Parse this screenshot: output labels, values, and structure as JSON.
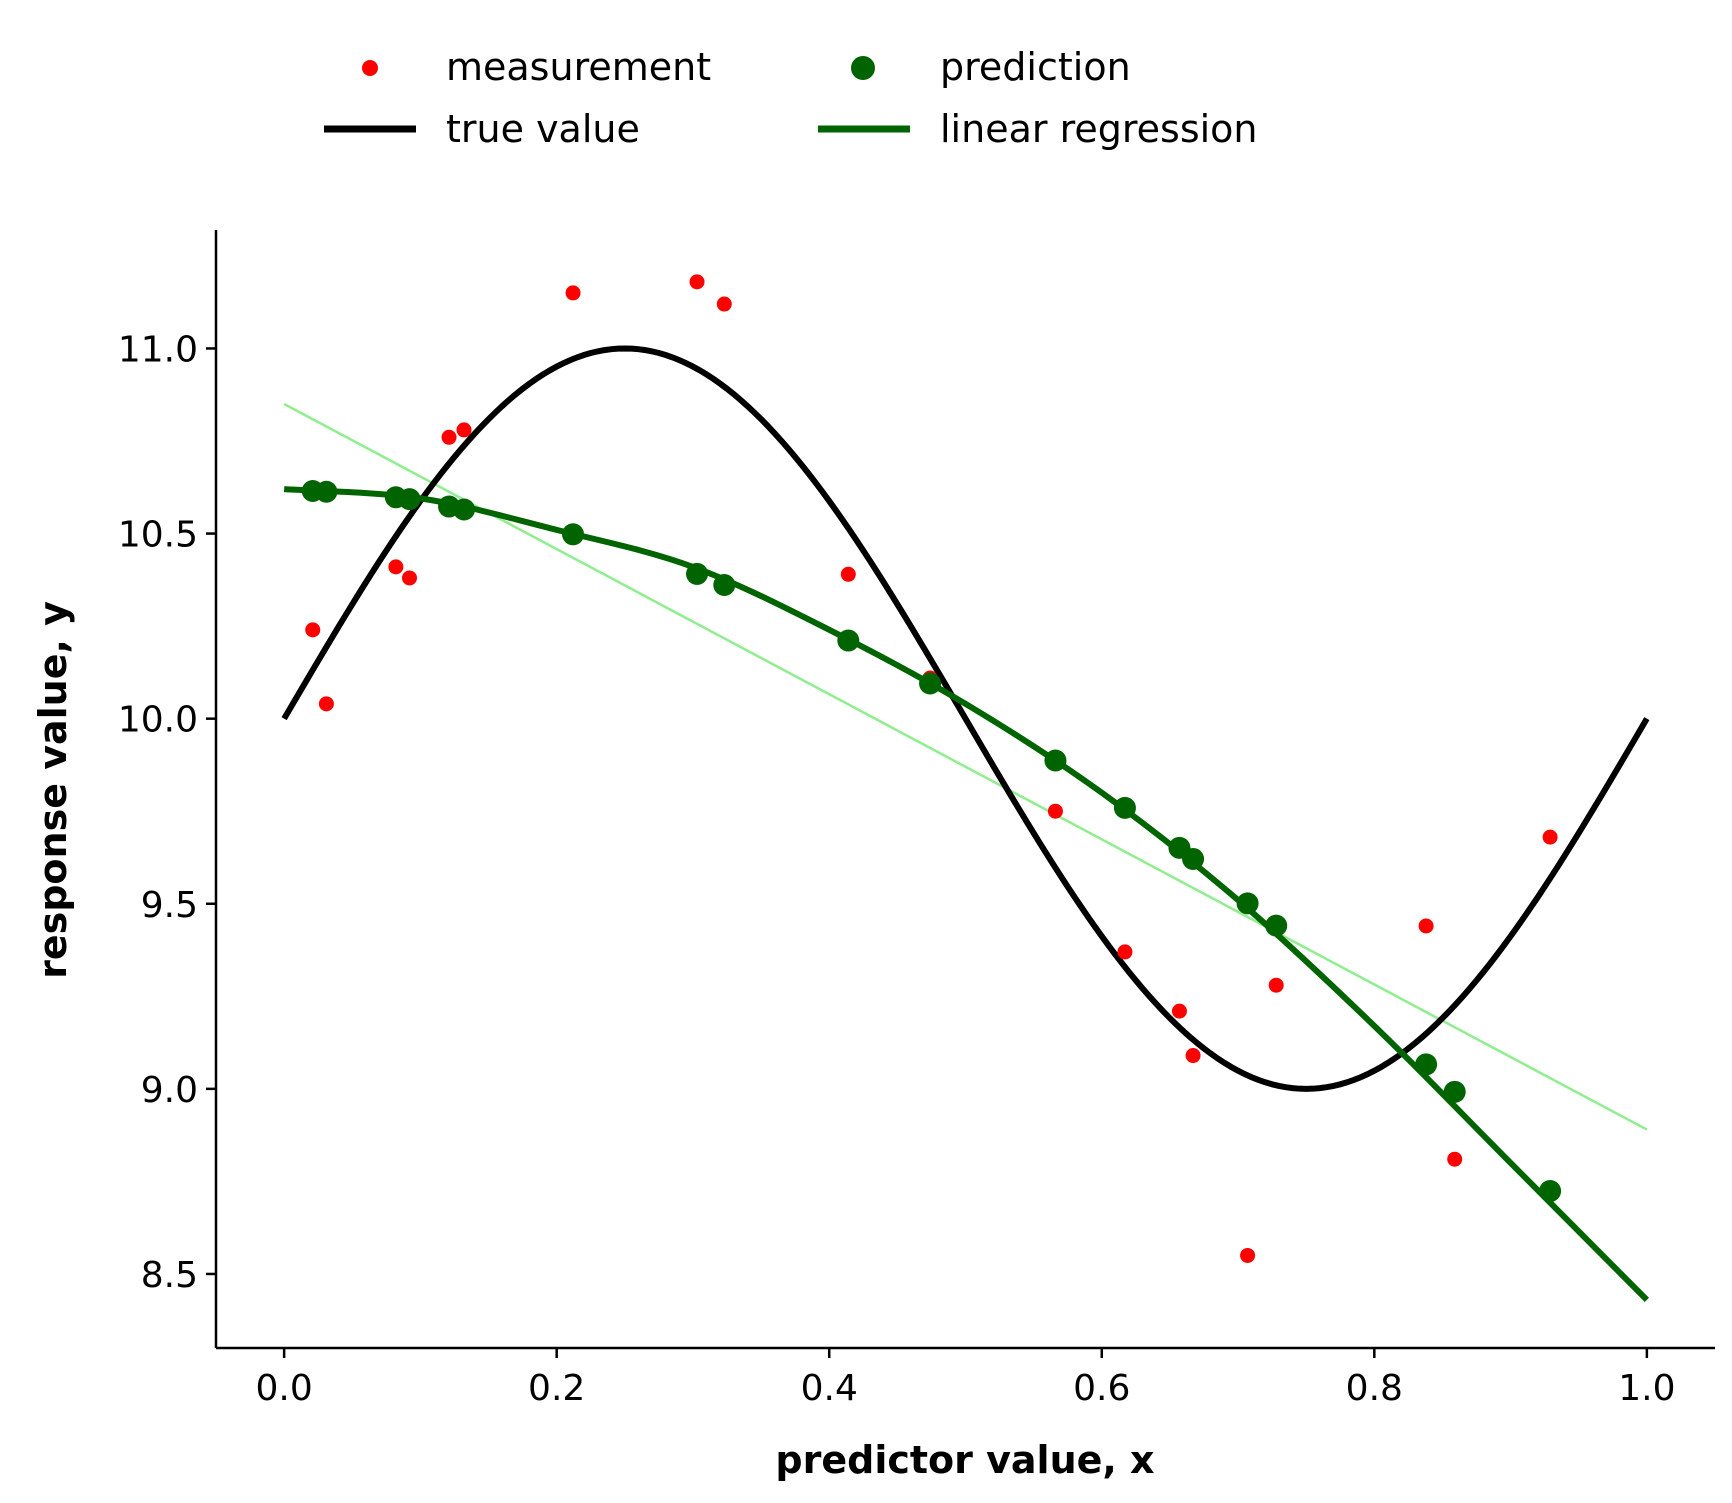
{
  "chart_data": {
    "type": "scatter",
    "xlabel": "predictor value, x",
    "ylabel": "response value, y",
    "xlim": [
      -0.05,
      1.05
    ],
    "ylim": [
      8.3,
      11.32
    ],
    "xticks": [
      0.0,
      0.2,
      0.4,
      0.6,
      0.8,
      1.0
    ],
    "xtick_labels": [
      "0.0",
      "0.2",
      "0.4",
      "0.6",
      "0.8",
      "1.0"
    ],
    "yticks": [
      8.5,
      9.0,
      9.5,
      10.0,
      10.5,
      11.0
    ],
    "ytick_labels": [
      "8.5",
      "9.0",
      "9.5",
      "10.0",
      "10.5",
      "11.0"
    ],
    "grid": false,
    "legend_position": "top",
    "legend": {
      "measurement": "measurement",
      "prediction": "prediction",
      "true_value": "true value",
      "linear_regression": "linear regression"
    },
    "colors": {
      "measurement": "#ff0000",
      "prediction": "#006400",
      "true_value": "#000000",
      "linear_regression": "#006400",
      "fit_line": "#90ee90"
    },
    "measurement": {
      "x": [
        0.021,
        0.031,
        0.082,
        0.092,
        0.121,
        0.132,
        0.212,
        0.303,
        0.323,
        0.414,
        0.474,
        0.566,
        0.617,
        0.657,
        0.667,
        0.707,
        0.728,
        0.838,
        0.859,
        0.929
      ],
      "y": [
        10.24,
        10.04,
        10.41,
        10.38,
        10.76,
        10.78,
        11.15,
        11.18,
        11.12,
        10.39,
        10.11,
        9.75,
        9.37,
        9.21,
        9.09,
        8.55,
        9.28,
        9.44,
        8.81,
        9.68
      ]
    },
    "prediction": {
      "x": [
        0.021,
        0.031,
        0.082,
        0.092,
        0.121,
        0.132,
        0.212,
        0.303,
        0.323,
        0.414,
        0.474,
        0.566,
        0.617,
        0.657,
        0.667,
        0.707,
        0.728,
        0.838,
        0.859,
        0.929
      ],
      "y": [
        10.615,
        10.613,
        10.598,
        10.593,
        10.573,
        10.565,
        10.498,
        10.391,
        10.361,
        10.211,
        10.095,
        9.887,
        9.759,
        9.651,
        9.621,
        9.501,
        9.441,
        9.066,
        8.992,
        8.724
      ]
    },
    "linear_regression_curve": {
      "x": [
        0.0,
        0.1,
        0.2,
        0.3,
        0.4,
        0.5,
        0.6,
        0.7,
        0.8,
        0.9,
        1.0
      ],
      "y": [
        10.62,
        10.595,
        10.51,
        10.41,
        10.24,
        10.04,
        9.8,
        9.51,
        9.17,
        8.8,
        8.43
      ]
    },
    "fit_line": {
      "x": [
        0.0,
        1.0
      ],
      "y": [
        10.85,
        8.89
      ]
    },
    "true_value": {
      "function": "10 + sin(2*pi*x)",
      "x_range": [
        0.0,
        1.0
      ]
    }
  }
}
